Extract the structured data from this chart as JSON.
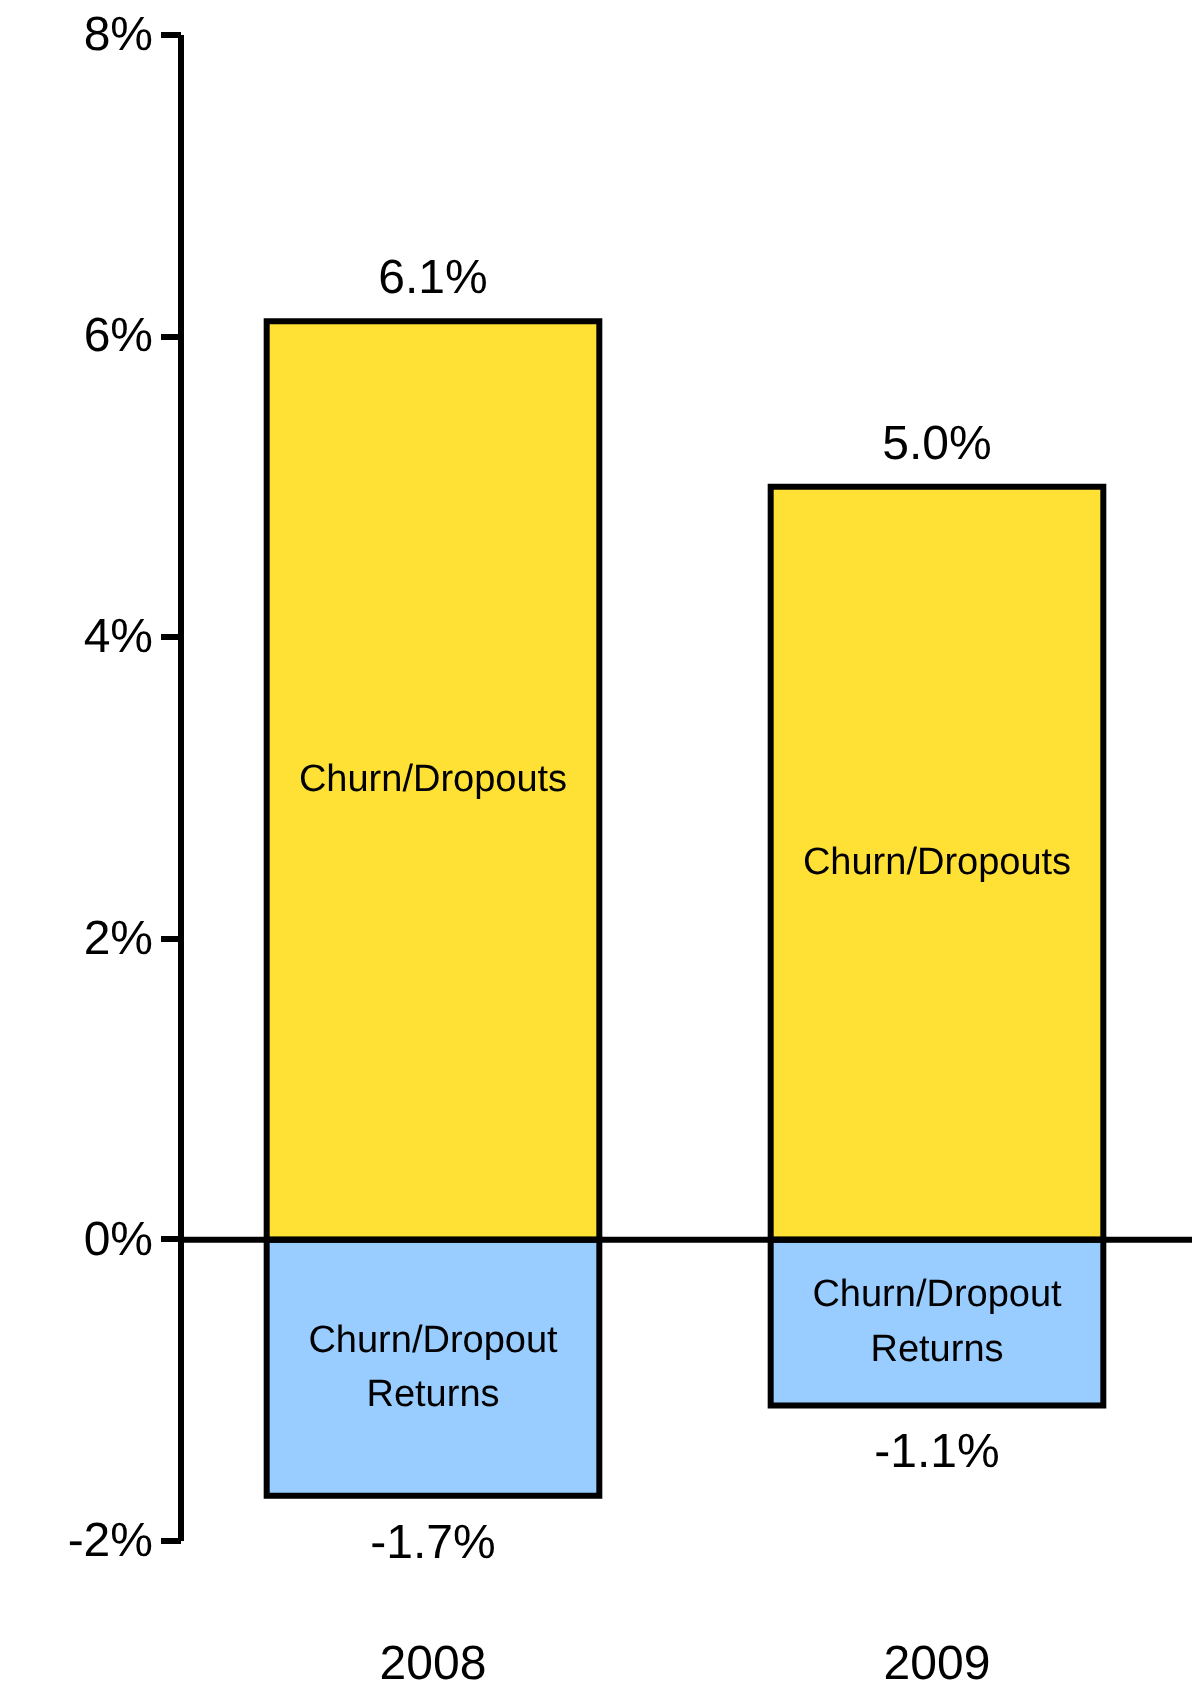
{
  "chart_data": {
    "type": "bar",
    "stacked": true,
    "categories": [
      "2008",
      "2009"
    ],
    "series": [
      {
        "name": "Churn/Dropouts",
        "color": "#ffe135",
        "values": [
          6.1,
          5.0
        ],
        "value_labels": [
          "6.1%",
          "5.0%"
        ]
      },
      {
        "name": "Churn/Dropout Returns",
        "color": "#99ccff",
        "values": [
          -1.7,
          -1.1
        ],
        "value_labels": [
          "-1.7%",
          "-1.1%"
        ]
      }
    ],
    "ylim": [
      -2,
      8
    ],
    "yticks": [
      {
        "value": -2,
        "label": "-2%"
      },
      {
        "value": 0,
        "label": "0%"
      },
      {
        "value": 2,
        "label": "2%"
      },
      {
        "value": 4,
        "label": "4%"
      },
      {
        "value": 6,
        "label": "6%"
      },
      {
        "value": 8,
        "label": "8%"
      }
    ]
  }
}
